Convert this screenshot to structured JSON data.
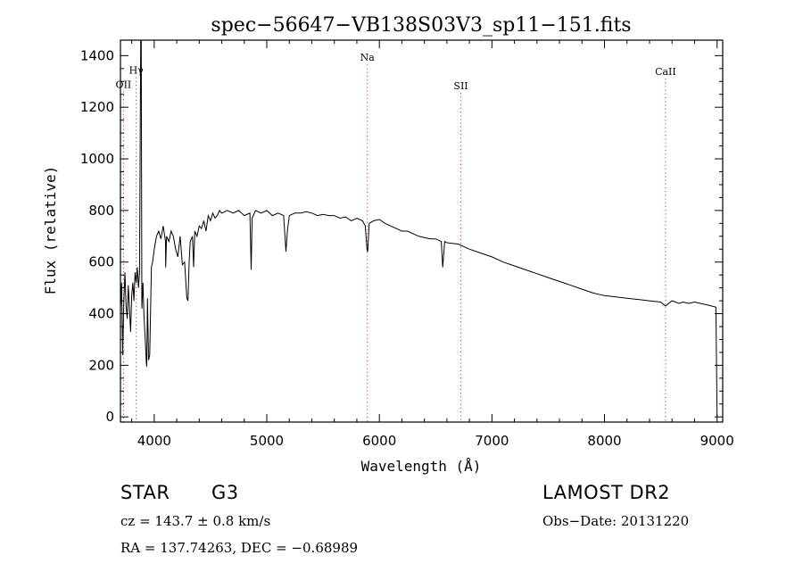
{
  "chart_data": {
    "type": "line",
    "title": "spec−56647−VB138S03V3_sp11−151.fits",
    "xlabel": "Wavelength (Å)",
    "ylabel": "Flux (relative)",
    "xlim": [
      3700,
      9050
    ],
    "ylim": [
      -20,
      1460
    ],
    "xticks": [
      4000,
      5000,
      6000,
      7000,
      8000,
      9000
    ],
    "yticks": [
      0,
      200,
      400,
      600,
      800,
      1000,
      1200,
      1400
    ],
    "grid": false,
    "series": [
      {
        "x": [
          3700,
          3710,
          3720,
          3730,
          3740,
          3750,
          3760,
          3770,
          3780,
          3790,
          3800,
          3810,
          3820,
          3830,
          3840,
          3850,
          3860,
          3870,
          3880,
          3885,
          3890,
          3900,
          3910,
          3920,
          3930,
          3934,
          3940,
          3950,
          3960,
          3968,
          3975,
          3985,
          4000,
          4020,
          4040,
          4060,
          4080,
          4100,
          4102,
          4110,
          4130,
          4150,
          4170,
          4190,
          4210,
          4230,
          4250,
          4270,
          4290,
          4300,
          4310,
          4320,
          4340,
          4350,
          4360,
          4380,
          4400,
          4420,
          4440,
          4460,
          4480,
          4500,
          4520,
          4540,
          4560,
          4580,
          4600,
          4650,
          4700,
          4750,
          4800,
          4850,
          4861,
          4870,
          4900,
          4950,
          5000,
          5050,
          5100,
          5150,
          5170,
          5183,
          5200,
          5250,
          5300,
          5350,
          5400,
          5450,
          5500,
          5550,
          5600,
          5650,
          5700,
          5750,
          5800,
          5850,
          5875,
          5890,
          5896,
          5910,
          5950,
          6000,
          6050,
          6100,
          6150,
          6200,
          6250,
          6300,
          6350,
          6400,
          6450,
          6500,
          6550,
          6563,
          6580,
          6600,
          6700,
          6800,
          6900,
          7000,
          7100,
          7200,
          7300,
          7400,
          7500,
          7600,
          7700,
          7800,
          7900,
          8000,
          8100,
          8200,
          8300,
          8400,
          8498,
          8542,
          8600,
          8662,
          8700,
          8750,
          8800,
          8850,
          8900,
          8950,
          8990,
          9000
        ],
        "values": [
          420,
          520,
          240,
          450,
          560,
          430,
          380,
          510,
          420,
          330,
          470,
          520,
          450,
          560,
          520,
          580,
          500,
          560,
          1460,
          1460,
          420,
          520,
          380,
          300,
          210,
          195,
          460,
          220,
          240,
          420,
          580,
          600,
          650,
          700,
          720,
          690,
          740,
          680,
          580,
          700,
          680,
          720,
          700,
          650,
          620,
          700,
          590,
          600,
          460,
          450,
          600,
          680,
          700,
          580,
          720,
          700,
          740,
          730,
          760,
          720,
          780,
          760,
          790,
          770,
          780,
          800,
          790,
          800,
          790,
          800,
          780,
          790,
          570,
          770,
          800,
          790,
          800,
          780,
          790,
          780,
          640,
          720,
          780,
          790,
          790,
          795,
          790,
          780,
          785,
          780,
          780,
          770,
          775,
          760,
          770,
          760,
          740,
          650,
          640,
          750,
          760,
          765,
          750,
          740,
          730,
          720,
          720,
          710,
          700,
          695,
          690,
          690,
          680,
          580,
          680,
          675,
          670,
          650,
          635,
          620,
          600,
          585,
          570,
          555,
          540,
          525,
          510,
          495,
          480,
          470,
          465,
          460,
          455,
          450,
          445,
          430,
          450,
          440,
          445,
          440,
          445,
          440,
          435,
          430,
          425,
          0
        ]
      }
    ],
    "annotations": [
      {
        "label": "Hγ",
        "x": 3840,
        "y": 1330
      },
      {
        "label": "OII",
        "x": 3727,
        "y": 1275
      },
      {
        "label": "Na",
        "x": 5893,
        "y": 1380
      },
      {
        "label": "SII",
        "x": 6724,
        "y": 1270
      },
      {
        "label": "CaII",
        "x": 8542,
        "y": 1325
      }
    ],
    "marker_lines": [
      3727,
      3840,
      5893,
      6724,
      8542
    ],
    "marker_color": "#e0302a"
  },
  "info": {
    "object_class": "STAR",
    "subclass": "G3",
    "survey": "LAMOST DR2",
    "cz": "cz = 143.7 ± 0.8 km/s",
    "obs_date": "Obs−Date: 20131220",
    "coords": "RA = 137.74263, DEC =  −0.68989"
  }
}
